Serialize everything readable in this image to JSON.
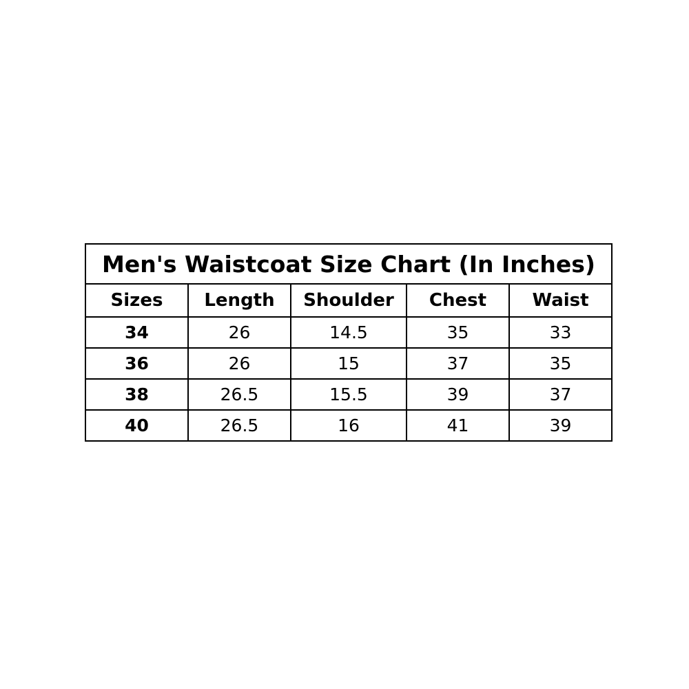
{
  "table": {
    "title": "Men's Waistcoat Size Chart (In Inches)",
    "columns": [
      "Sizes",
      "Length",
      "Shoulder",
      "Chest",
      "Waist"
    ],
    "rows": [
      [
        "34",
        "26",
        "14.5",
        "35",
        "33"
      ],
      [
        "36",
        "26",
        "15",
        "37",
        "35"
      ],
      [
        "38",
        "26.5",
        "15.5",
        "39",
        "37"
      ],
      [
        "40",
        "26.5",
        "16",
        "41",
        "39"
      ]
    ]
  }
}
